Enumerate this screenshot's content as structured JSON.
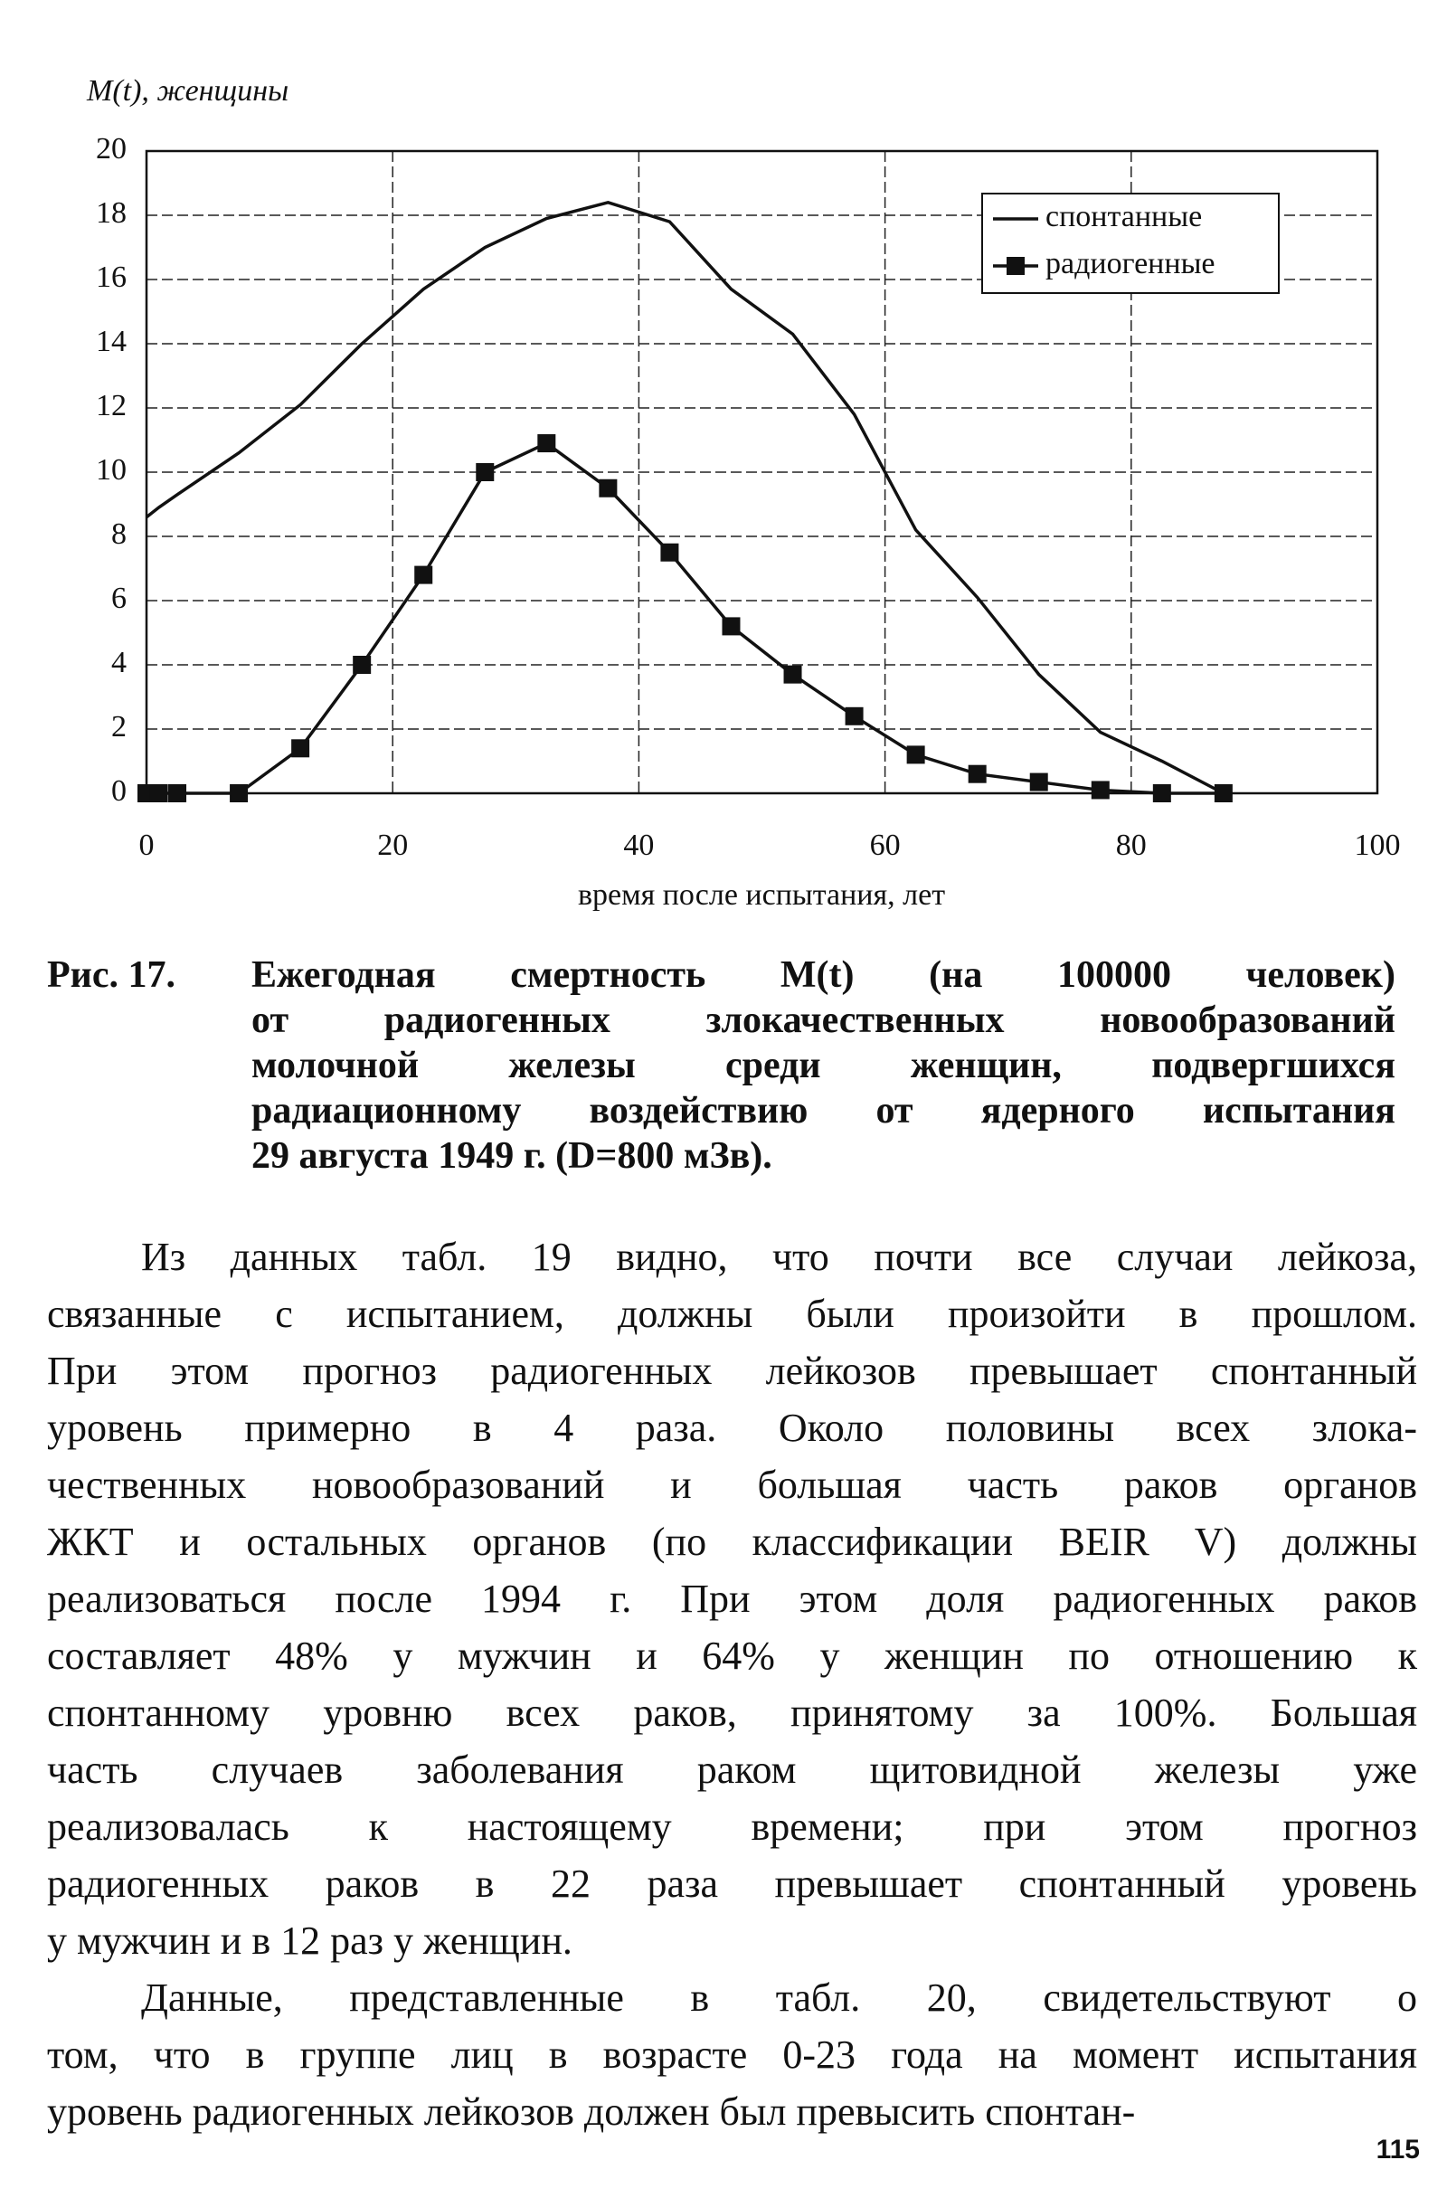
{
  "chart_data": {
    "type": "line",
    "title": "M(t), женщины",
    "x_label": "время после испытания, лет",
    "x": [
      0,
      1,
      2.5,
      7.5,
      12.5,
      17.5,
      22.5,
      27.5,
      32.5,
      37.5,
      42.5,
      47.5,
      52.5,
      57.5,
      62.5,
      67.5,
      72.5,
      77.5,
      82.5,
      87.5
    ],
    "series": [
      {
        "name": "спонтанные",
        "color": "#111111",
        "marker": false,
        "values": [
          8.6,
          8.9,
          9.3,
          10.6,
          12.1,
          14.0,
          15.7,
          17.0,
          17.9,
          18.4,
          17.8,
          15.7,
          14.3,
          11.8,
          8.2,
          6.1,
          3.7,
          1.9,
          1.0,
          0
        ]
      },
      {
        "name": "радиогенные",
        "color": "#111111",
        "marker": true,
        "values": [
          0,
          0,
          0,
          0,
          1.4,
          4.0,
          6.8,
          10.0,
          10.9,
          9.5,
          7.5,
          5.2,
          3.7,
          2.4,
          1.2,
          0.6,
          0.35,
          0.1,
          0,
          0
        ]
      }
    ],
    "xlim": [
      0,
      100
    ],
    "xticks": [
      0,
      20,
      40,
      60,
      80,
      100
    ],
    "ylim": [
      0,
      20
    ],
    "yticks": [
      0,
      2,
      4,
      6,
      8,
      10,
      12,
      14,
      16,
      18,
      20
    ],
    "grid": true,
    "legend": "upper right"
  },
  "figure_caption": {
    "label": "Рис. 17.",
    "lines": [
      "Ежегодная смертность M(t) (на 100000 человек)",
      "от радиогенных злокачественных новообразований",
      "молочной железы среди женщин, подвергшихся",
      "радиационному воздействию от ядерного испытания",
      "29 августа 1949 г. (D=800 мЗв)."
    ]
  },
  "paragraphs": [
    {
      "lines": [
        "Из данных табл. 19 видно, что почти все случаи лейкоза,",
        "связанные с испытанием, должны были произойти в прошлом.",
        "При этом прогноз радиогенных лейкозов превышает спонтанный",
        "уровень примерно в 4 раза. Около половины всех злока-",
        "чественных новообразований и большая часть раков органов",
        "ЖКТ и остальных органов (по классификации BEIR V) должны",
        "реализоваться после 1994 г. При этом доля радиогенных раков",
        "составляет 48% у мужчин и 64% у женщин по отношению к",
        "спонтанному уровню всех раков, принятому за 100%. Большая",
        "часть случаев заболевания раком щитовидной железы уже",
        "реализовалась к настоящему времени; при этом прогноз",
        "радиогенных раков в 22 раза превышает спонтанный уровень",
        "у мужчин и в 12 раз у женщин."
      ]
    },
    {
      "lines": [
        "Данные, представленные в табл. 20, свидетельствуют о",
        "том, что в группе лиц в возрасте 0-23 года на момент испытания",
        "уровень радиогенных лейкозов должен был превысить спонтан-"
      ]
    }
  ],
  "page_number": "115"
}
